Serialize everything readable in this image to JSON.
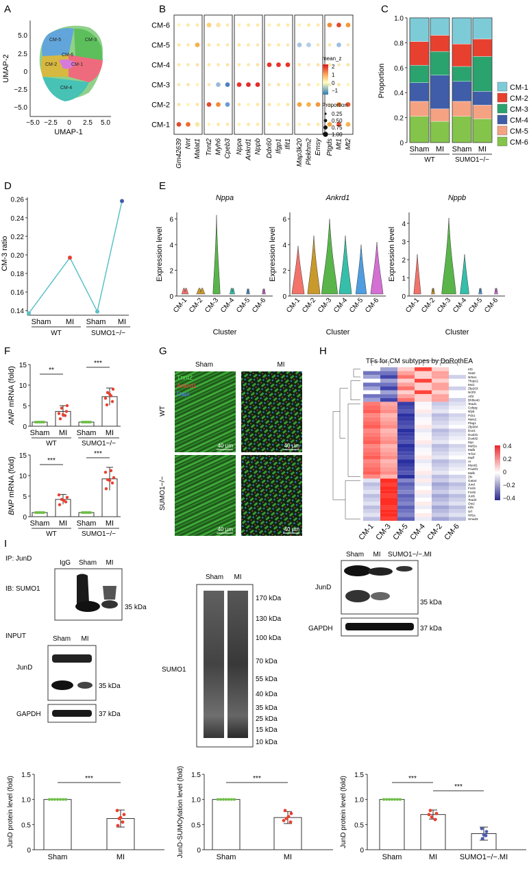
{
  "panels": {
    "A": {
      "letter": "A",
      "xlabel": "UMAP-1",
      "ylabel": "UMAP-2",
      "xticks": [
        "−5.0",
        "−2.5",
        "0",
        "2.5",
        "5.0"
      ],
      "yticks": [
        "5.0",
        "2.5",
        "0",
        "−2.5",
        "−5.0"
      ],
      "clusters": [
        {
          "name": "CM-1",
          "color": "#e64b6e"
        },
        {
          "name": "CM-2",
          "color": "#c9a227"
        },
        {
          "name": "CM-3",
          "color": "#4caf50"
        },
        {
          "name": "CM-4",
          "color": "#39b8a8"
        },
        {
          "name": "CM-5",
          "color": "#4f8fe0"
        },
        {
          "name": "CM-6",
          "color": "#d36ad9"
        }
      ]
    },
    "B": {
      "letter": "B",
      "rows": [
        "CM-6",
        "CM-5",
        "CM-4",
        "CM-3",
        "CM-2",
        "CM-1"
      ],
      "genes": [
        [
          "Gm42639",
          "Nnt",
          "Malat1"
        ],
        [
          "Tnnt2",
          "Myh6",
          "Cpeb3"
        ],
        [
          "Nppa",
          "Ankrd1",
          "Nppb"
        ],
        [
          "Ddx60",
          "Ifgp1",
          "Ifit1"
        ],
        [
          "Map3k20",
          "Plekhm2",
          "Emsy"
        ],
        [
          "Ptgds",
          "Mt1",
          "Mt2"
        ]
      ],
      "legend": {
        "color_title": "mean_z",
        "color_ticks": [
          "2",
          "1",
          "0",
          "−1"
        ],
        "size_title": "Proportion",
        "size_ticks": [
          "0.25",
          "0.50",
          "0.75",
          "1.00"
        ]
      }
    },
    "C": {
      "letter": "C",
      "ylabel": "Proportion",
      "yticks": [
        "1.0",
        "0.8",
        "0.6",
        "0.4",
        "0.2",
        "0"
      ],
      "groups": [
        "Sham",
        "MI",
        "Sham",
        "MI"
      ],
      "group_labels": [
        "WT",
        "SUMO1−/−"
      ]
    },
    "D": {
      "letter": "D",
      "ylabel": "CM-3 ratio",
      "yticks": [
        "0.26",
        "0.24",
        "0.22",
        "0.20",
        "0.18",
        "0.16",
        "0.14"
      ],
      "xticks": [
        "Sham",
        "MI",
        "Sham",
        "MI"
      ],
      "group_labels": [
        "WT",
        "SUMO1−/−"
      ]
    },
    "E": {
      "letter": "E",
      "xlabel": "Cluster",
      "ylabel": "Expression level",
      "genes": [
        "Nppa",
        "Ankrd1",
        "Nppb"
      ],
      "clusters": [
        "CM-1",
        "CM-2",
        "CM-3",
        "CM-4",
        "CM-5",
        "CM-6"
      ]
    },
    "F": {
      "letter": "F",
      "ylabel_top": "ANP mRNA (fold)",
      "ylabel_bottom": "BNP mRNA (fold)",
      "ylabel_top_italic": "ANP",
      "ylabel_bottom_italic": "BNP",
      "ylabel_suffix": " mRNA (fold)",
      "yticks_top": [
        "15",
        "10",
        "5",
        "0"
      ],
      "yticks_bottom": [
        "15",
        "10",
        "5",
        "0"
      ],
      "xticks": [
        "Sham",
        "MI",
        "Sham",
        "MI"
      ],
      "group_labels": [
        "WT",
        "SUMO1−/−"
      ],
      "sig_wt_top": "**",
      "sig_ko_top": "***",
      "sig_wt_bottom": "***",
      "sig_ko_bottom": "***"
    },
    "G": {
      "letter": "G",
      "col_labels": [
        "Sham",
        "MI"
      ],
      "row_labels": [
        "WT",
        "SUMO1−/−"
      ],
      "stain1": "Tnnt2",
      "stain2": "Ankrd1",
      "stain3": "Dapi",
      "scale": "40 μm"
    },
    "H": {
      "letter": "H",
      "title": "TFs for CM subtypes by DoRothEA",
      "columns": [
        "CM-1",
        "CM-3",
        "CM-5",
        "CM-4",
        "CM-2",
        "CM-6"
      ],
      "tfs": [
        "Irf9",
        "Stat2",
        "Nr5a1",
        "Thap11",
        "Mxi1",
        "Zfp263",
        "Nr2f2",
        "Atf3",
        "Bhlhe40",
        "Tead1",
        "Cebpg",
        "Nfyb",
        "Pdx1",
        "Meis2",
        "Plag1",
        "Zfp384",
        "Dux4",
        "Duxbl1",
        "Duxbl2",
        "Myc",
        "Mef2a",
        "Mafb",
        "Tcf12",
        "Maff",
        "Ar",
        "Myod1",
        "Pou5f1",
        "Mafk",
        "Zfx",
        "Gata4",
        "Jund",
        "Fosl1",
        "Fosl2",
        "Junb",
        "Tead4",
        "Otx2",
        "Klf6",
        "Srf",
        "Hif1a",
        "Smad3"
      ],
      "scale_ticks": [
        "0.4",
        "0.2",
        "0",
        "−0.2",
        "−0.4"
      ]
    },
    "I": {
      "letter": "I",
      "ip": "IP: JunD",
      "ib": "IB: SUMO1",
      "input": "INPUT",
      "igg": "IgG",
      "sham": "Sham",
      "mi": "MI",
      "ko_mi": "SUMO1−/−.MI",
      "jund": "JunD",
      "gapdh": "GAPDH",
      "sumo1": "SUMO1",
      "kda": [
        "35 kDa",
        "37 kDa",
        "170 kDa",
        "130 kDa",
        "100 kDa",
        "70 kDa",
        "55 kDa",
        "40 kDa",
        "35 kDa",
        "25 kDa",
        "15 kDa",
        "10 kDa"
      ]
    }
  },
  "chart_data": [
    {
      "type": "line",
      "panel": "D",
      "categories": [
        "Sham",
        "MI",
        "Sham",
        "MI"
      ],
      "values": [
        0.137,
        0.197,
        0.139,
        0.258
      ],
      "ylabel": "CM-3 ratio",
      "ylim": [
        0.135,
        0.262
      ],
      "xgroups": [
        "WT",
        "SUMO1−/−"
      ],
      "color": "#5bc1c7"
    },
    {
      "type": "bar",
      "panel": "C",
      "categories": [
        "Sham",
        "MI",
        "Sham",
        "MI"
      ],
      "ylabel": "Proportion",
      "ylim": [
        0,
        1
      ],
      "series": [
        {
          "name": "CM-6",
          "color": "#84c44b",
          "values": [
            0.21,
            0.17,
            0.21,
            0.19
          ]
        },
        {
          "name": "CM-5",
          "color": "#f5a283",
          "values": [
            0.12,
            0.1,
            0.12,
            0.11
          ]
        },
        {
          "name": "CM-4",
          "color": "#3f5da8",
          "values": [
            0.15,
            0.27,
            0.16,
            0.11
          ]
        },
        {
          "name": "CM-3",
          "color": "#2aa36f",
          "values": [
            0.14,
            0.19,
            0.12,
            0.28
          ]
        },
        {
          "name": "CM-2",
          "color": "#e8402f",
          "values": [
            0.19,
            0.13,
            0.18,
            0.14
          ]
        },
        {
          "name": "CM-1",
          "color": "#7ecbd8",
          "values": [
            0.19,
            0.14,
            0.21,
            0.17
          ]
        }
      ]
    },
    {
      "type": "bar",
      "panel": "F-top",
      "categories": [
        "Sham",
        "MI",
        "Sham",
        "MI"
      ],
      "values": [
        1.0,
        3.6,
        1.0,
        7.2
      ],
      "errors": [
        0.1,
        1.4,
        0.1,
        2.1
      ],
      "ylim": [
        0,
        15
      ],
      "ylabel": "ANP mRNA (fold)"
    },
    {
      "type": "bar",
      "panel": "F-bottom",
      "categories": [
        "Sham",
        "MI",
        "Sham",
        "MI"
      ],
      "values": [
        1.0,
        4.2,
        1.0,
        9.2
      ],
      "errors": [
        0.1,
        1.2,
        0.1,
        2.8
      ],
      "ylim": [
        0,
        15
      ],
      "ylabel": "BNP mRNA (fold)"
    },
    {
      "type": "bar",
      "panel": "I-1",
      "categories": [
        "Sham",
        "MI"
      ],
      "values": [
        1.0,
        0.62
      ],
      "errors": [
        0,
        0.17
      ],
      "ylim": [
        0,
        1.5
      ],
      "ylabel": "JunD protein level (fold)",
      "yticks": [
        "1.5",
        "1.0",
        "0.5",
        "0"
      ],
      "sig": "***"
    },
    {
      "type": "bar",
      "panel": "I-2",
      "categories": [
        "Sham",
        "MI"
      ],
      "values": [
        1.0,
        0.64
      ],
      "errors": [
        0,
        0.12
      ],
      "ylim": [
        0,
        1.5
      ],
      "ylabel": "JunD-SUMOylation level (fold)",
      "yticks": [
        "1.5",
        "1.0",
        "0.5",
        "0"
      ],
      "sig": "***"
    },
    {
      "type": "bar",
      "panel": "I-3",
      "categories": [
        "Sham",
        "MI",
        "SUMO1−/−.MI"
      ],
      "values": [
        1.0,
        0.7,
        0.32
      ],
      "errors": [
        0,
        0.09,
        0.13
      ],
      "ylim": [
        0,
        1.5
      ],
      "ylabel": "JunD protein level (fold)",
      "yticks": [
        "1.5",
        "1.0",
        "0.5",
        "0"
      ],
      "sig": [
        "***",
        "***"
      ]
    }
  ]
}
